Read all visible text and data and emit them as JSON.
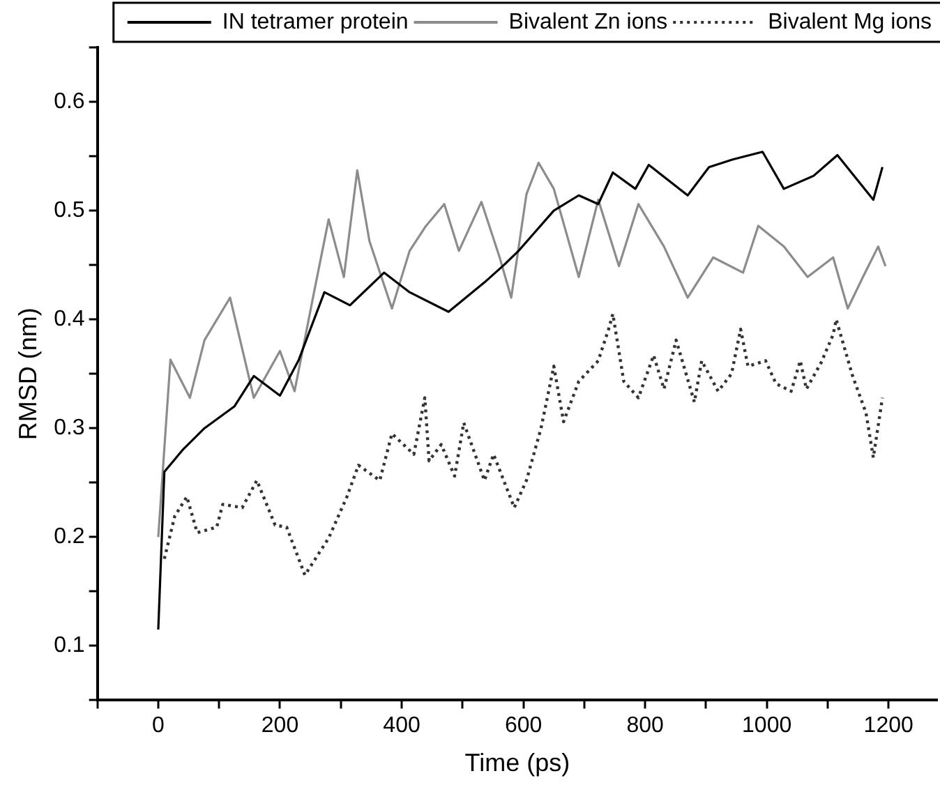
{
  "chart_data": {
    "type": "line",
    "xlabel": "Time (ps)",
    "ylabel": "RMSD (nm)",
    "xlim": [
      -100,
      1280
    ],
    "ylim": [
      0.05,
      0.65
    ],
    "xticks": [
      {
        "value": -100,
        "label": null
      },
      0,
      {
        "value": 100,
        "label": null
      },
      200,
      {
        "value": 300,
        "label": null
      },
      400,
      {
        "value": 500,
        "label": null
      },
      600,
      {
        "value": 700,
        "label": null
      },
      800,
      {
        "value": 900,
        "label": null
      },
      1000,
      {
        "value": 1100,
        "label": null
      },
      1200
    ],
    "yticks": [
      {
        "value": 0.05,
        "label": null
      },
      0.1,
      {
        "value": 0.15,
        "label": null
      },
      0.2,
      {
        "value": 0.25,
        "label": null
      },
      0.3,
      {
        "value": 0.35,
        "label": null
      },
      0.4,
      {
        "value": 0.45,
        "label": null
      },
      0.5,
      {
        "value": 0.55,
        "label": null
      },
      0.6,
      {
        "value": 0.65,
        "label": null
      }
    ],
    "grid": false,
    "legend": "top right",
    "marker": "none",
    "series": [
      {
        "name": "IN tetramer protein",
        "color": "#000000",
        "line_style": "solid",
        "x": [
          0,
          10,
          40,
          76,
          125,
          157,
          200,
          231,
          273,
          315,
          371,
          413,
          477,
          536,
          568,
          592,
          650,
          691,
          723,
          747,
          784,
          806,
          870,
          905,
          944,
          993,
          1028,
          1077,
          1116,
          1175,
          1190
        ],
        "values": [
          0.115,
          0.26,
          0.28,
          0.3,
          0.32,
          0.348,
          0.33,
          0.363,
          0.425,
          0.413,
          0.443,
          0.425,
          0.407,
          0.434,
          0.45,
          0.463,
          0.5,
          0.514,
          0.506,
          0.535,
          0.52,
          0.542,
          0.514,
          0.54,
          0.547,
          0.554,
          0.52,
          0.532,
          0.551,
          0.51,
          0.54
        ]
      },
      {
        "name": "Bivalent Zn ions",
        "color": "#8c8c8c",
        "line_style": "solid",
        "x": [
          0,
          20,
          52,
          76,
          118,
          157,
          200,
          224,
          256,
          280,
          305,
          327,
          347,
          384,
          413,
          440,
          470,
          494,
          531,
          561,
          580,
          605,
          625,
          650,
          691,
          723,
          757,
          789,
          831,
          870,
          912,
          961,
          986,
          1028,
          1067,
          1109,
          1133,
          1158,
          1183,
          1195
        ],
        "values": [
          0.2,
          0.363,
          0.328,
          0.381,
          0.42,
          0.328,
          0.371,
          0.334,
          0.425,
          0.492,
          0.439,
          0.537,
          0.472,
          0.41,
          0.463,
          0.486,
          0.506,
          0.463,
          0.508,
          0.457,
          0.42,
          0.515,
          0.544,
          0.52,
          0.439,
          0.51,
          0.449,
          0.506,
          0.467,
          0.42,
          0.457,
          0.443,
          0.486,
          0.467,
          0.439,
          0.457,
          0.41,
          0.439,
          0.467,
          0.449
        ]
      },
      {
        "name": "Bivalent Mg ions",
        "color": "#333333",
        "line_style": "dotted",
        "x": [
          10,
          27,
          47,
          64,
          96,
          106,
          138,
          162,
          192,
          211,
          241,
          280,
          310,
          329,
          364,
          384,
          420,
          438,
          445,
          465,
          487,
          502,
          536,
          551,
          585,
          605,
          629,
          650,
          666,
          691,
          723,
          740,
          747,
          765,
          789,
          814,
          831,
          851,
          881,
          893,
          920,
          942,
          957,
          969,
          998,
          1015,
          1040,
          1055,
          1065,
          1089,
          1109,
          1114,
          1141,
          1163,
          1175,
          1190
        ],
        "values": [
          0.18,
          0.219,
          0.237,
          0.204,
          0.209,
          0.23,
          0.227,
          0.252,
          0.211,
          0.209,
          0.165,
          0.199,
          0.237,
          0.266,
          0.252,
          0.295,
          0.276,
          0.328,
          0.27,
          0.285,
          0.256,
          0.305,
          0.252,
          0.276,
          0.227,
          0.252,
          0.3,
          0.357,
          0.306,
          0.343,
          0.362,
          0.391,
          0.405,
          0.343,
          0.328,
          0.367,
          0.336,
          0.381,
          0.324,
          0.362,
          0.334,
          0.35,
          0.391,
          0.357,
          0.362,
          0.341,
          0.334,
          0.362,
          0.336,
          0.36,
          0.386,
          0.4,
          0.348,
          0.314,
          0.273,
          0.328
        ]
      }
    ]
  }
}
